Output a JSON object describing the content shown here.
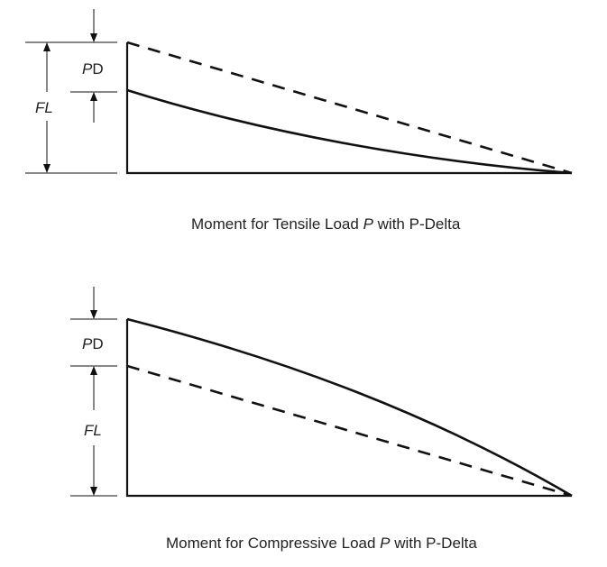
{
  "diagrams": [
    {
      "id": "tensile",
      "labels": {
        "pd_p": "P",
        "pd_d": "D",
        "fl": "FL"
      },
      "caption": {
        "prefix": "Moment for Tensile Load ",
        "var": "P",
        "suffix": " with P-Delta"
      }
    },
    {
      "id": "compressive",
      "labels": {
        "pd_p": "P",
        "pd_d": "D",
        "fl": "FL"
      },
      "caption": {
        "prefix": "Moment for Compressive Load ",
        "var": "P",
        "suffix": " with P-Delta"
      }
    }
  ]
}
